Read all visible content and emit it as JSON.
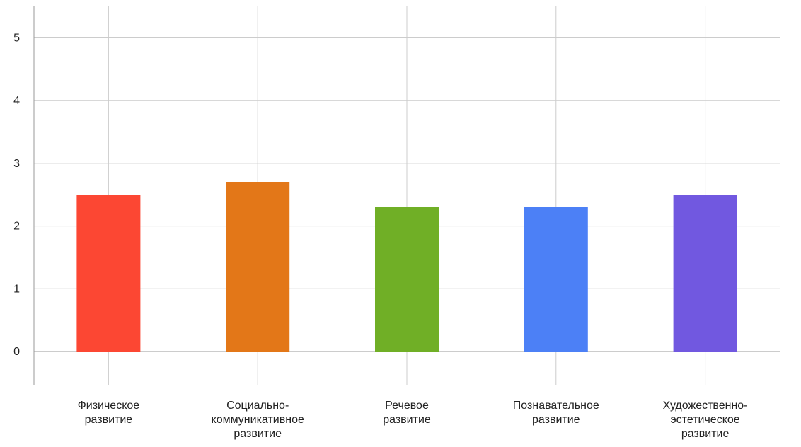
{
  "chart_data": {
    "type": "bar",
    "categories": [
      [
        "Физическое",
        "развитие"
      ],
      [
        "Социально-",
        "коммуникативное",
        "развитие"
      ],
      [
        "Речевое",
        "развитие"
      ],
      [
        "Познавательное",
        "развитие"
      ],
      [
        "Художественно-",
        "эстетическое",
        "развитие"
      ]
    ],
    "values": [
      2.5,
      2.7,
      2.3,
      2.3,
      2.5
    ],
    "colors": [
      "#fc4733",
      "#e37718",
      "#70af26",
      "#4c80f6",
      "#7158e0"
    ],
    "yticks": [
      "0",
      "1",
      "2",
      "3",
      "4",
      "5"
    ],
    "ylim": [
      -0.55,
      5.45
    ],
    "title": "",
    "xlabel": "",
    "ylabel": "",
    "grid": true,
    "legend": "none"
  }
}
